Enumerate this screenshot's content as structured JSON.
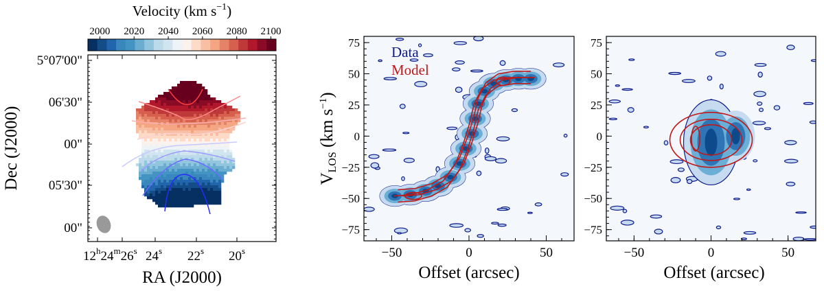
{
  "chart_data": [
    {
      "type": "heatmap",
      "panel": "velocity-map",
      "colorbar": {
        "label": "Velocity (km s",
        "label_sup": "−1",
        "label_close": ")",
        "range": [
          1993,
          2103
        ],
        "ticks": [
          "2000",
          "2020",
          "2040",
          "2060",
          "2080",
          "2100"
        ],
        "colormap": [
          "#053061",
          "#134c87",
          "#2166ac",
          "#3a87bd",
          "#4393c3",
          "#6bacd1",
          "#92c5de",
          "#bcdaea",
          "#d1e5f0",
          "#eef3f6",
          "#fbf2ee",
          "#fddbc7",
          "#f8bfa4",
          "#f4a582",
          "#e58368",
          "#d6604d",
          "#c0393a",
          "#b2182b",
          "#8a0b25",
          "#67001f"
        ]
      },
      "xlabel": "RA (J2000)",
      "ylabel": "Dec (J2000)",
      "xticks": [
        {
          "h": "12",
          "hs": "h",
          "m": "24",
          "ms": "m",
          "s": "26",
          "ss": "s"
        },
        {
          "s": "24",
          "ss": "s"
        },
        {
          "s": "22",
          "ss": "s"
        },
        {
          "s": "20",
          "ss": "s"
        }
      ],
      "yticks": [
        "5°07'00\"",
        "06'30\"",
        "00\"",
        "05'30\"",
        "00\""
      ],
      "velocity_top": 2100,
      "velocity_bottom": 1995,
      "beam_color": "#999999"
    },
    {
      "type": "contour",
      "panel": "pv-major-axis",
      "xlabel": "Offset (arcsec)",
      "ylabel_main": "V",
      "ylabel_sub": "LOS",
      "ylabel_rest": " (km s",
      "ylabel_sup": "−1",
      "ylabel_close": ")",
      "xlim": [
        -68,
        68
      ],
      "ylim": [
        -84,
        80
      ],
      "xticks": [
        -50,
        0,
        50
      ],
      "yticks": [
        75,
        50,
        25,
        0,
        -25,
        -50,
        -75
      ],
      "legend": [
        {
          "label": "Data",
          "color": "#0d1a8c"
        },
        {
          "label": "Model",
          "color": "#c01818"
        }
      ],
      "data_ridge": [
        [
          -48,
          -48
        ],
        [
          -38,
          -47
        ],
        [
          -28,
          -44
        ],
        [
          -20,
          -40
        ],
        [
          -12,
          -33
        ],
        [
          -6,
          -22
        ],
        [
          -2,
          -10
        ],
        [
          2,
          2
        ],
        [
          4,
          14
        ],
        [
          6,
          26
        ],
        [
          10,
          36
        ],
        [
          16,
          42
        ],
        [
          24,
          45
        ],
        [
          32,
          46
        ],
        [
          40,
          46
        ]
      ],
      "model_ridge": [
        [
          -46,
          -48
        ],
        [
          -35,
          -47
        ],
        [
          -24,
          -43
        ],
        [
          -14,
          -36
        ],
        [
          -6,
          -22
        ],
        [
          -1,
          -6
        ],
        [
          3,
          10
        ],
        [
          6,
          26
        ],
        [
          11,
          38
        ],
        [
          19,
          45
        ],
        [
          29,
          47
        ],
        [
          40,
          47
        ]
      ]
    },
    {
      "type": "contour",
      "panel": "pv-minor-axis",
      "xlabel": "Offset (arcsec)",
      "xlim": [
        -68,
        68
      ],
      "ylim": [
        -84,
        80
      ],
      "xticks": [
        -50,
        0,
        50
      ],
      "yticks": [
        75,
        50,
        25,
        0,
        -25,
        -50,
        -75
      ],
      "data_center": [
        0,
        -5
      ],
      "model_center": [
        0,
        -3
      ]
    }
  ]
}
